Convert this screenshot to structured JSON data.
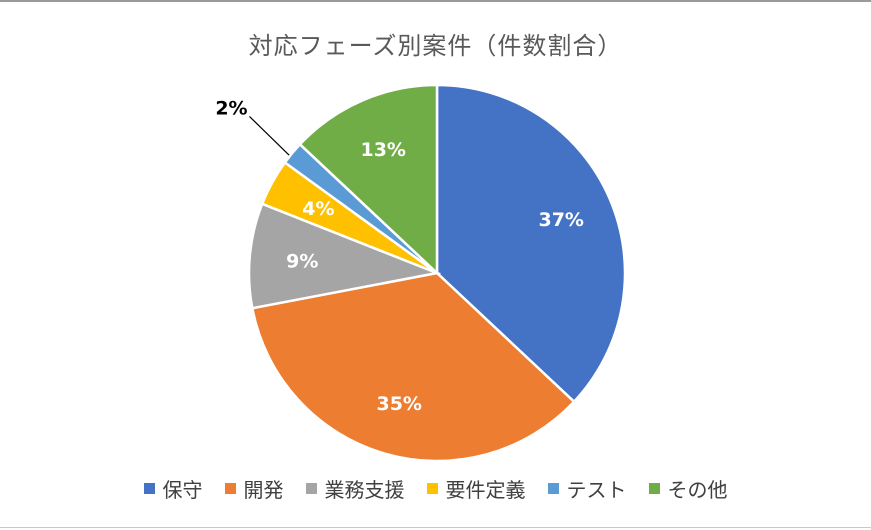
{
  "chart_data": {
    "type": "pie",
    "title": "対応フェーズ別案件（件数割合）",
    "categories": [
      "保守",
      "開発",
      "業務支援",
      "要件定義",
      "テスト",
      "その他"
    ],
    "values": [
      37,
      35,
      9,
      4,
      2,
      13
    ],
    "labels": [
      "37%",
      "35%",
      "9%",
      "4%",
      "2%",
      "13%"
    ],
    "colors": [
      "#4472C4",
      "#ED7D31",
      "#A5A5A5",
      "#FFC000",
      "#5B9BD5",
      "#70AD47"
    ],
    "legend_position": "bottom"
  }
}
